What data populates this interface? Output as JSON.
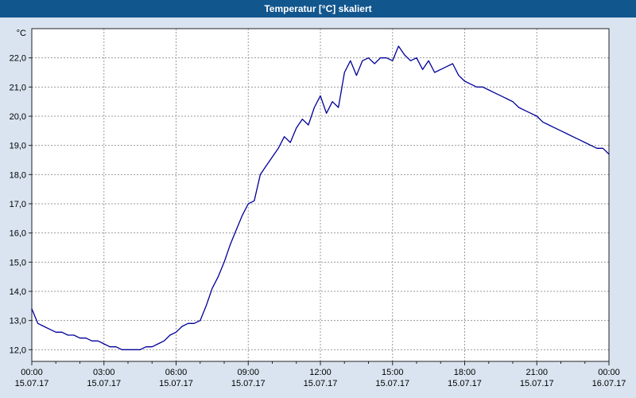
{
  "window": {
    "title": "Temperatur [°C] skaliert"
  },
  "colors": {
    "titlebar": "#12568e",
    "window_background": "#d9e4f0",
    "plot_background": "#ffffff",
    "line": "#000099",
    "grid": "#9a9a9a",
    "axis": "#222222",
    "text": "#000000"
  },
  "chart_data": {
    "type": "line",
    "title": "Temperatur [°C] skaliert",
    "xlabel": "",
    "ylabel": "°C",
    "xlim": [
      0,
      24
    ],
    "ylim": [
      11.6,
      23.0
    ],
    "grid": "dashed",
    "legend_position": "none",
    "grid_color": "#9a9a9a",
    "y_ticks": {
      "values": [
        12,
        13,
        14,
        15,
        16,
        17,
        18,
        19,
        20,
        21,
        22
      ],
      "labels": [
        "12,0",
        "13,0",
        "14,0",
        "15,0",
        "16,0",
        "17,0",
        "18,0",
        "19,0",
        "20,0",
        "21,0",
        "22,0"
      ]
    },
    "x_ticks": [
      {
        "hour": 0,
        "time": "00:00",
        "date": "15.07.17"
      },
      {
        "hour": 3,
        "time": "03:00",
        "date": "15.07.17"
      },
      {
        "hour": 6,
        "time": "06:00",
        "date": "15.07.17"
      },
      {
        "hour": 9,
        "time": "09:00",
        "date": "15.07.17"
      },
      {
        "hour": 12,
        "time": "12:00",
        "date": "15.07.17"
      },
      {
        "hour": 15,
        "time": "15:00",
        "date": "15.07.17"
      },
      {
        "hour": 18,
        "time": "18:00",
        "date": "15.07.17"
      },
      {
        "hour": 21,
        "time": "21:00",
        "date": "15.07.17"
      },
      {
        "hour": 24,
        "time": "00:00",
        "date": "16.07.17"
      }
    ],
    "series": [
      {
        "name": "Temperatur [°C] skaliert",
        "color": "#000099",
        "x": [
          0,
          0.25,
          0.5,
          0.75,
          1,
          1.25,
          1.5,
          1.75,
          2,
          2.25,
          2.5,
          2.75,
          3,
          3.25,
          3.5,
          3.75,
          4,
          4.25,
          4.5,
          4.75,
          5,
          5.25,
          5.5,
          5.75,
          6,
          6.25,
          6.5,
          6.75,
          7,
          7.25,
          7.5,
          7.75,
          8,
          8.25,
          8.5,
          8.75,
          9,
          9.25,
          9.5,
          9.75,
          10,
          10.25,
          10.5,
          10.75,
          11,
          11.25,
          11.5,
          11.75,
          12,
          12.25,
          12.5,
          12.75,
          13,
          13.25,
          13.5,
          13.75,
          14,
          14.25,
          14.5,
          14.75,
          15,
          15.25,
          15.5,
          15.75,
          16,
          16.25,
          16.5,
          16.75,
          17,
          17.25,
          17.5,
          17.75,
          18,
          18.25,
          18.5,
          18.75,
          19,
          19.25,
          19.5,
          19.75,
          20,
          20.25,
          20.5,
          20.75,
          21,
          21.25,
          21.5,
          21.75,
          22,
          22.25,
          22.5,
          22.75,
          23,
          23.25,
          23.5,
          23.75,
          24
        ],
        "values": [
          13.4,
          12.9,
          12.8,
          12.7,
          12.6,
          12.6,
          12.5,
          12.5,
          12.4,
          12.4,
          12.3,
          12.3,
          12.2,
          12.1,
          12.1,
          12.0,
          12.0,
          12.0,
          12.0,
          12.1,
          12.1,
          12.2,
          12.3,
          12.5,
          12.6,
          12.8,
          12.9,
          12.9,
          13.0,
          13.5,
          14.1,
          14.5,
          15.0,
          15.6,
          16.1,
          16.6,
          17.0,
          17.1,
          18.0,
          18.3,
          18.6,
          18.9,
          19.3,
          19.1,
          19.6,
          19.9,
          19.7,
          20.3,
          20.7,
          20.1,
          20.5,
          20.3,
          21.5,
          21.9,
          21.4,
          21.9,
          22.0,
          21.8,
          22.0,
          22.0,
          21.9,
          22.4,
          22.1,
          21.9,
          22.0,
          21.6,
          21.9,
          21.5,
          21.6,
          21.7,
          21.8,
          21.4,
          21.2,
          21.1,
          21.0,
          21.0,
          20.9,
          20.8,
          20.7,
          20.6,
          20.5,
          20.3,
          20.2,
          20.1,
          20.0,
          19.8,
          19.7,
          19.6,
          19.5,
          19.4,
          19.3,
          19.2,
          19.1,
          19.0,
          18.9,
          18.9,
          18.7
        ]
      }
    ]
  }
}
